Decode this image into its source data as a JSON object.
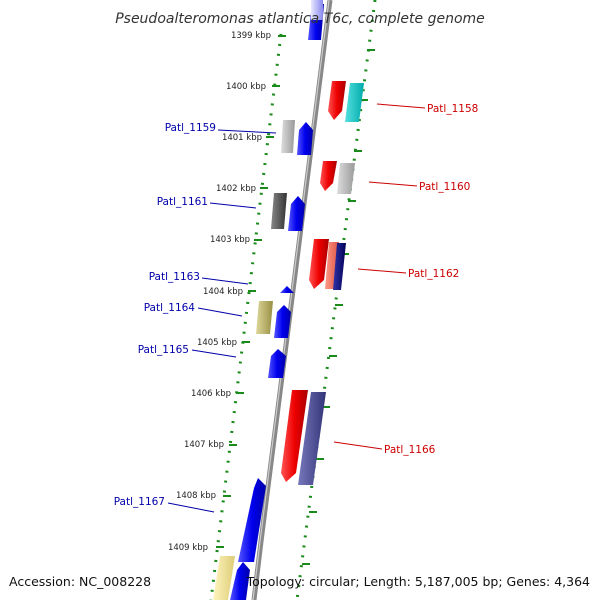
{
  "title": "Pseudoalteromonas atlantica T6c, complete genome",
  "footer": {
    "accession": "Accession: NC_008228",
    "summary": "Topology: circular; Length: 5,187,005 bp; Genes: 4,364"
  },
  "ticks": [
    "1399 kbp",
    "1400 kbp",
    "1401 kbp",
    "1402 kbp",
    "1403 kbp",
    "1404 kbp",
    "1405 kbp",
    "1406 kbp",
    "1407 kbp",
    "1408 kbp",
    "1409 kbp"
  ],
  "colors": {
    "forward": "#ff0000",
    "reverse": "#0000ff",
    "backbone": "#888888",
    "ruler": "#1a8a1a",
    "forward_label": "#cc0000",
    "reverse_label": "#0000aa"
  },
  "forward_genes": [
    {
      "label": "Patl_1158"
    },
    {
      "label": "Patl_1160"
    },
    {
      "label": "Patl_1162"
    },
    {
      "label": "Patl_1166"
    }
  ],
  "reverse_genes": [
    {
      "label": "Patl_1159"
    },
    {
      "label": "Patl_1161"
    },
    {
      "label": "Patl_1163"
    },
    {
      "label": "Patl_1164"
    },
    {
      "label": "Patl_1165"
    },
    {
      "label": "Patl_1167"
    }
  ]
}
